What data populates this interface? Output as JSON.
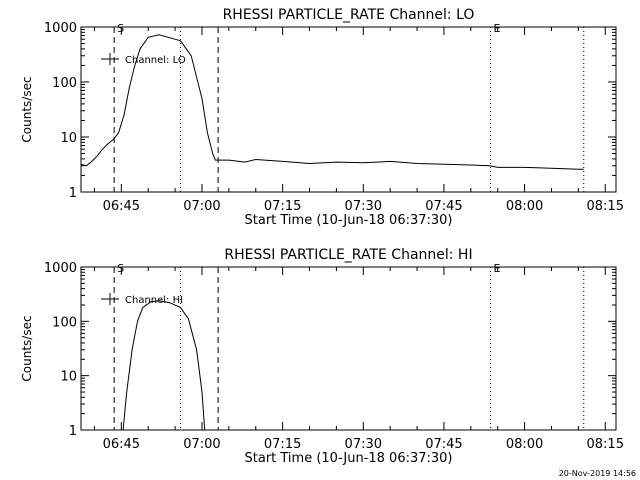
{
  "footer_timestamp": "20-Nov-2019 14:56",
  "chart_data": [
    {
      "type": "line",
      "title": "RHESSI PARTICLE_RATE Channel: LO",
      "xlabel": "Start Time (10-Jun-18 06:37:30)",
      "ylabel": "Counts/sec",
      "yscale": "log",
      "ylim": [
        1,
        1000
      ],
      "xlim": [
        "06:37:30",
        "08:17:00"
      ],
      "x_ticks": [
        "06:45",
        "07:00",
        "07:15",
        "07:30",
        "07:45",
        "08:00",
        "08:15"
      ],
      "y_ticks": [
        "1",
        "10",
        "100",
        "1000"
      ],
      "legend": {
        "position": "top-left",
        "label": "Channel: LO"
      },
      "markers": [
        {
          "label": "S",
          "time": "06:43:40",
          "style": "dashed"
        },
        {
          "label": "",
          "time": "06:56:00",
          "style": "dotted"
        },
        {
          "label": "",
          "time": "07:03:00",
          "style": "dashed"
        },
        {
          "label": "E",
          "time": "07:53:40",
          "style": "dotted"
        },
        {
          "label": "",
          "time": "08:11:00",
          "style": "dotted"
        }
      ],
      "series": [
        {
          "x": [
            "06:37:30",
            "06:38:30",
            "06:39:30",
            "06:40:30",
            "06:41:30",
            "06:42:30",
            "06:43:30",
            "06:44:30",
            "06:45:30",
            "06:46:30",
            "06:47:30",
            "06:48:30",
            "06:50:00",
            "06:52:00",
            "06:54:00",
            "06:56:00",
            "06:58:00",
            "07:00:00",
            "07:01:00",
            "07:02:00",
            "07:02:30",
            "07:05:00",
            "07:08:00",
            "07:10:00",
            "07:15:00",
            "07:20:00",
            "07:25:00",
            "07:30:00",
            "07:35:00",
            "07:40:00",
            "07:45:00",
            "07:50:00",
            "07:53:30",
            "07:55:00",
            "08:00:00",
            "08:05:00",
            "08:10:00",
            "08:11:00"
          ],
          "values": [
            3.2,
            3.0,
            3.6,
            4.5,
            6,
            7.5,
            9,
            12,
            25,
            80,
            200,
            400,
            650,
            720,
            640,
            560,
            300,
            50,
            12,
            5,
            3.8,
            3.8,
            3.5,
            3.9,
            3.6,
            3.3,
            3.5,
            3.4,
            3.6,
            3.3,
            3.2,
            3.1,
            3.0,
            2.8,
            2.8,
            2.7,
            2.6,
            2.6
          ]
        }
      ]
    },
    {
      "type": "line",
      "title": "RHESSI PARTICLE_RATE Channel: HI",
      "xlabel": "Start Time (10-Jun-18 06:37:30)",
      "ylabel": "Counts/sec",
      "yscale": "log",
      "ylim": [
        1,
        1000
      ],
      "xlim": [
        "06:37:30",
        "08:17:00"
      ],
      "x_ticks": [
        "06:45",
        "07:00",
        "07:15",
        "07:30",
        "07:45",
        "08:00",
        "08:15"
      ],
      "y_ticks": [
        "1",
        "10",
        "100",
        "1000"
      ],
      "legend": {
        "position": "top-left",
        "label": "Channel: HI"
      },
      "markers": [
        {
          "label": "S",
          "time": "06:43:40",
          "style": "dashed"
        },
        {
          "label": "",
          "time": "06:56:00",
          "style": "dotted"
        },
        {
          "label": "",
          "time": "07:03:00",
          "style": "dashed"
        },
        {
          "label": "E",
          "time": "07:53:40",
          "style": "dotted"
        },
        {
          "label": "",
          "time": "08:11:00",
          "style": "dotted"
        }
      ],
      "series": [
        {
          "x": [
            "06:45:20",
            "06:46:00",
            "06:47:00",
            "06:48:00",
            "06:49:00",
            "06:50:30",
            "06:52:00",
            "06:54:00",
            "06:56:00",
            "06:57:30",
            "06:59:00",
            "07:00:00",
            "07:00:30"
          ],
          "values": [
            1,
            5,
            30,
            100,
            180,
            230,
            240,
            220,
            180,
            110,
            30,
            5,
            1
          ]
        }
      ]
    }
  ]
}
